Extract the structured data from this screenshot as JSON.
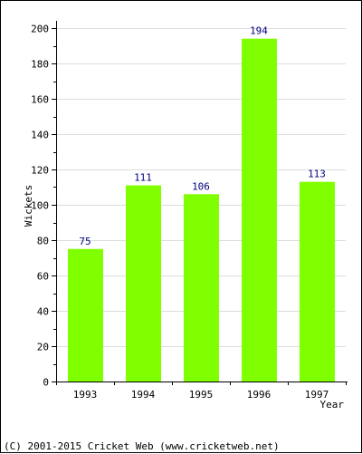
{
  "chart_data": {
    "type": "bar",
    "categories": [
      "1993",
      "1994",
      "1995",
      "1996",
      "1997"
    ],
    "values": [
      75,
      111,
      106,
      194,
      113
    ],
    "data_labels": [
      "75",
      "111",
      "106",
      "194",
      "113"
    ],
    "xlabel": "Year",
    "ylabel": "Wickets",
    "ylim": [
      0,
      200
    ],
    "yticks": [
      0,
      20,
      40,
      60,
      80,
      100,
      120,
      140,
      160,
      180,
      200
    ],
    "grid": true,
    "bar_color": "#80ff00"
  },
  "footer": {
    "text": "(C) 2001-2015 Cricket Web (www.cricketweb.net)"
  }
}
